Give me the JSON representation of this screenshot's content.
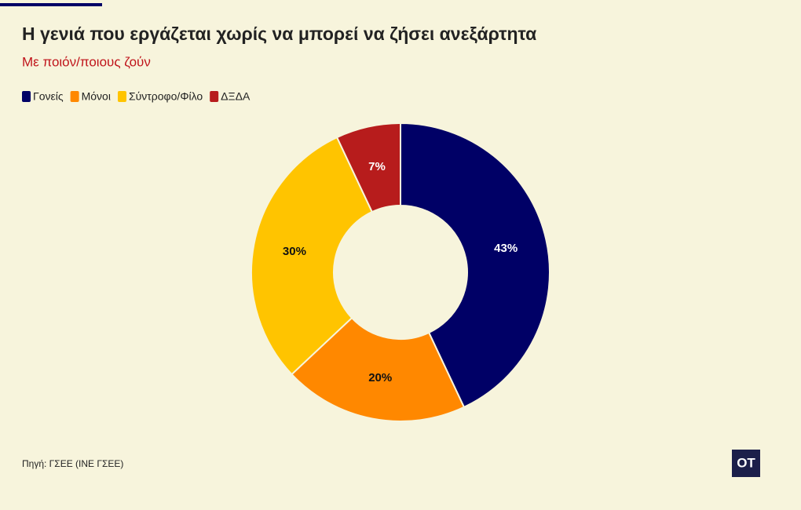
{
  "chart_data": {
    "type": "donut",
    "title": "Η γενιά που εργάζεται χωρίς να μπορεί να ζήσει ανεξάρτητα",
    "subtitle": "Με ποιόν/ποιους ζούν",
    "categories": [
      "Γονείς",
      "Μόνοι",
      "Σύντροφο/Φίλο",
      "ΔΞΔΑ"
    ],
    "values": [
      43,
      20,
      30,
      7
    ],
    "value_labels": [
      "43%",
      "20%",
      "30%",
      "7%"
    ],
    "colors": [
      "#000066",
      "#ff8800",
      "#ffc400",
      "#b71c1c"
    ],
    "source": "Πηγή: ΓΣΕΕ (ΙΝΕ ΓΣΕΕ)",
    "logo": "OT"
  }
}
